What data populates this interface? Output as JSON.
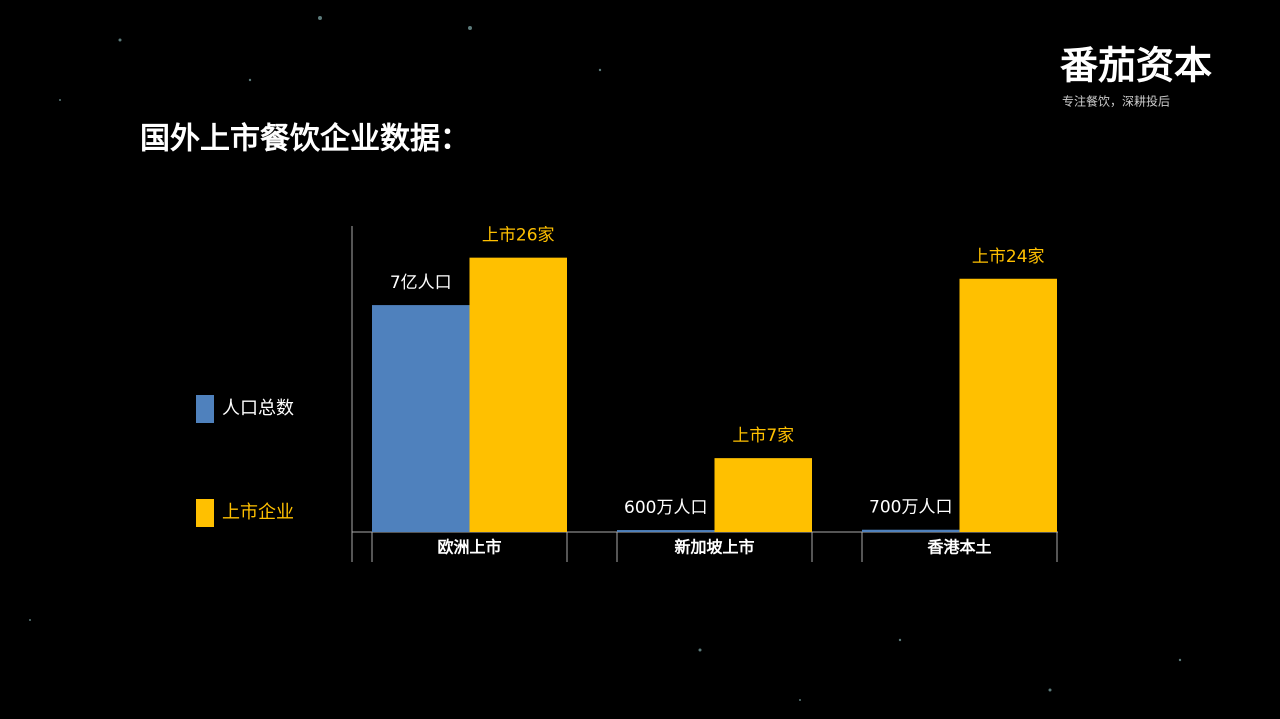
{
  "brand": {
    "name": "番茄资本",
    "slogan": "专注餐饮，深耕投后"
  },
  "chart_data": {
    "type": "bar",
    "title": "国外上市餐饮企业数据：",
    "categories": [
      "欧洲上市",
      "新加坡上市",
      "香港本土"
    ],
    "series": [
      {
        "name": "人口总数",
        "color": "#4f81bd",
        "axis": "y2",
        "values": [
          700000000,
          6000000,
          7000000
        ],
        "value_labels": [
          "7亿人口",
          "600万人口",
          "700万人口"
        ],
        "label_color": "#ffffff"
      },
      {
        "name": "上市企业",
        "color": "#ffc000",
        "values": [
          26,
          7,
          24
        ],
        "value_labels": [
          "上市26家",
          "上市7家",
          "上市24家"
        ],
        "label_color": "#ffc000"
      }
    ],
    "ylim": [
      0,
      29
    ],
    "y2lim": [
      0,
      944000000
    ],
    "legend": "left"
  }
}
